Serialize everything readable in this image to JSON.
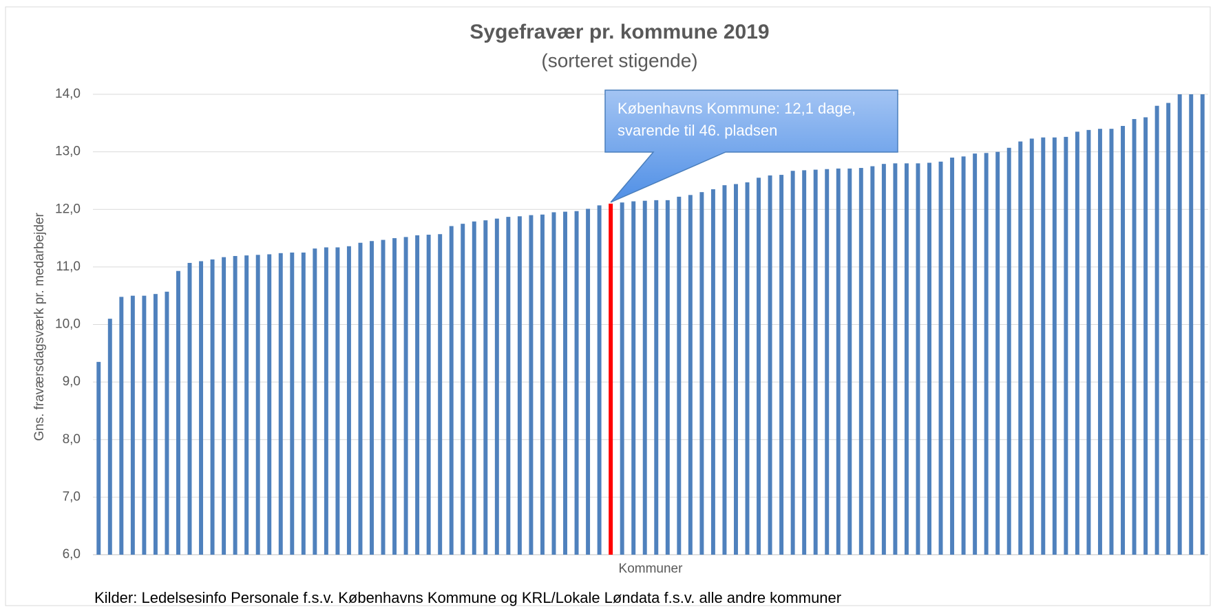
{
  "chart_data": {
    "type": "bar",
    "title": "Sygefravær pr. kommune 2019",
    "subtitle": "(sorteret stigende)",
    "y_label": "Gns. fraværsdagsværk pr. medarbejder",
    "x_label": "Kommuner",
    "annotation": [
      "Københavns Kommune: 12,1 dage,",
      "svarende til 46. pladsen"
    ],
    "source": "Kilder: Ledelsesinfo Personale f.s.v. Københavns Kommune og KRL/Lokale Løndata f.s.v. alle andre kommuner",
    "values": [
      9.35,
      10.1,
      10.48,
      10.5,
      10.5,
      10.53,
      10.57,
      10.93,
      11.07,
      11.1,
      11.13,
      11.17,
      11.19,
      11.2,
      11.21,
      11.22,
      11.24,
      11.25,
      11.25,
      11.32,
      11.34,
      11.34,
      11.36,
      11.42,
      11.45,
      11.47,
      11.5,
      11.52,
      11.55,
      11.56,
      11.57,
      11.71,
      11.75,
      11.79,
      11.81,
      11.84,
      11.87,
      11.88,
      11.9,
      11.91,
      11.95,
      11.96,
      11.97,
      12.01,
      12.07,
      12.1,
      12.12,
      12.14,
      12.15,
      12.16,
      12.16,
      12.22,
      12.25,
      12.3,
      12.35,
      12.42,
      12.44,
      12.47,
      12.55,
      12.59,
      12.6,
      12.67,
      12.68,
      12.69,
      12.7,
      12.71,
      12.71,
      12.72,
      12.75,
      12.79,
      12.8,
      12.8,
      12.8,
      12.81,
      12.83,
      12.9,
      12.92,
      12.97,
      12.98,
      13.0,
      13.07,
      13.18,
      13.23,
      13.25,
      13.25,
      13.26,
      13.35,
      13.38,
      13.4,
      13.4,
      13.45,
      13.57,
      13.6,
      13.8,
      13.85,
      14.0,
      14.0,
      14.0
    ],
    "colors": [
      "#4f81bd",
      "#4f81bd",
      "#4f81bd",
      "#4f81bd",
      "#4f81bd",
      "#4f81bd",
      "#4f81bd",
      "#4f81bd",
      "#4f81bd",
      "#4f81bd",
      "#4f81bd",
      "#4f81bd",
      "#4f81bd",
      "#4f81bd",
      "#4f81bd",
      "#4f81bd",
      "#4f81bd",
      "#4f81bd",
      "#4f81bd",
      "#4f81bd",
      "#4f81bd",
      "#4f81bd",
      "#4f81bd",
      "#4f81bd",
      "#4f81bd",
      "#4f81bd",
      "#4f81bd",
      "#4f81bd",
      "#4f81bd",
      "#4f81bd",
      "#4f81bd",
      "#4f81bd",
      "#4f81bd",
      "#4f81bd",
      "#4f81bd",
      "#4f81bd",
      "#4f81bd",
      "#4f81bd",
      "#4f81bd",
      "#4f81bd",
      "#4f81bd",
      "#4f81bd",
      "#4f81bd",
      "#4f81bd",
      "#4f81bd",
      "#ff0000",
      "#4f81bd",
      "#4f81bd",
      "#4f81bd",
      "#4f81bd",
      "#4f81bd",
      "#4f81bd",
      "#4f81bd",
      "#4f81bd",
      "#4f81bd",
      "#4f81bd",
      "#4f81bd",
      "#4f81bd",
      "#4f81bd",
      "#4f81bd",
      "#4f81bd",
      "#4f81bd",
      "#4f81bd",
      "#4f81bd",
      "#4f81bd",
      "#4f81bd",
      "#4f81bd",
      "#4f81bd",
      "#4f81bd",
      "#4f81bd",
      "#4f81bd",
      "#4f81bd",
      "#4f81bd",
      "#4f81bd",
      "#4f81bd",
      "#4f81bd",
      "#4f81bd",
      "#4f81bd",
      "#4f81bd",
      "#4f81bd",
      "#4f81bd",
      "#4f81bd",
      "#4f81bd",
      "#4f81bd",
      "#4f81bd",
      "#4f81bd",
      "#4f81bd",
      "#4f81bd",
      "#4f81bd",
      "#4f81bd",
      "#4f81bd",
      "#4f81bd",
      "#4f81bd",
      "#4f81bd",
      "#4f81bd",
      "#4f81bd",
      "#4f81bd",
      "#4f81bd"
    ],
    "ylim": [
      6,
      14
    ],
    "yticks": [
      {
        "value": 6,
        "label": "6,0"
      },
      {
        "value": 7,
        "label": "7,0"
      },
      {
        "value": 8,
        "label": "8,0"
      },
      {
        "value": 9,
        "label": "9,0"
      },
      {
        "value": 10,
        "label": "10,0"
      },
      {
        "value": 11,
        "label": "11,0"
      },
      {
        "value": 12,
        "label": "12,0"
      },
      {
        "value": 13,
        "label": "13,0"
      },
      {
        "value": 14,
        "label": "14,0"
      }
    ],
    "grid": true
  }
}
